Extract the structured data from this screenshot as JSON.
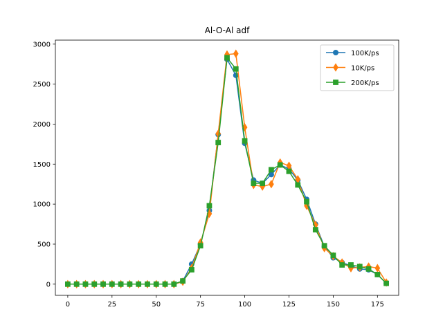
{
  "chart_data": {
    "type": "line",
    "title": "Al-O-Al adf",
    "xlabel": "",
    "ylabel": "",
    "xlim": [
      -7,
      187
    ],
    "ylim": [
      -140,
      3050
    ],
    "xticks": [
      0,
      25,
      50,
      75,
      100,
      125,
      150,
      175
    ],
    "yticks": [
      0,
      500,
      1000,
      1500,
      2000,
      2500,
      3000
    ],
    "grid": false,
    "legend_position": "top-right",
    "x": [
      0,
      5,
      10,
      15,
      20,
      25,
      30,
      35,
      40,
      45,
      50,
      55,
      60,
      65,
      70,
      75,
      80,
      85,
      90,
      95,
      100,
      105,
      110,
      115,
      120,
      125,
      130,
      135,
      140,
      145,
      150,
      155,
      160,
      165,
      170,
      175,
      180
    ],
    "series": [
      {
        "name": "100K/ps",
        "color": "#1f77b4",
        "marker": "circle",
        "values": [
          0,
          0,
          0,
          0,
          0,
          0,
          0,
          0,
          0,
          0,
          0,
          0,
          0,
          40,
          250,
          500,
          920,
          1870,
          2810,
          2610,
          1760,
          1300,
          1260,
          1370,
          1490,
          1440,
          1300,
          1060,
          750,
          470,
          330,
          270,
          230,
          190,
          180,
          120,
          10
        ]
      },
      {
        "name": "10K/ps",
        "color": "#ff7f0e",
        "marker": "diamond",
        "values": [
          0,
          0,
          0,
          0,
          0,
          0,
          0,
          0,
          0,
          0,
          0,
          0,
          0,
          30,
          200,
          520,
          880,
          1880,
          2870,
          2880,
          1960,
          1240,
          1220,
          1250,
          1520,
          1480,
          1310,
          980,
          740,
          450,
          350,
          270,
          200,
          210,
          220,
          200,
          20
        ]
      },
      {
        "name": "200K/ps",
        "color": "#2ca02c",
        "marker": "square",
        "values": [
          0,
          0,
          0,
          0,
          0,
          0,
          0,
          0,
          0,
          0,
          0,
          0,
          0,
          40,
          180,
          480,
          980,
          1770,
          2830,
          2690,
          1790,
          1260,
          1260,
          1430,
          1490,
          1410,
          1240,
          1030,
          680,
          480,
          360,
          240,
          240,
          220,
          190,
          120,
          10
        ]
      }
    ]
  }
}
